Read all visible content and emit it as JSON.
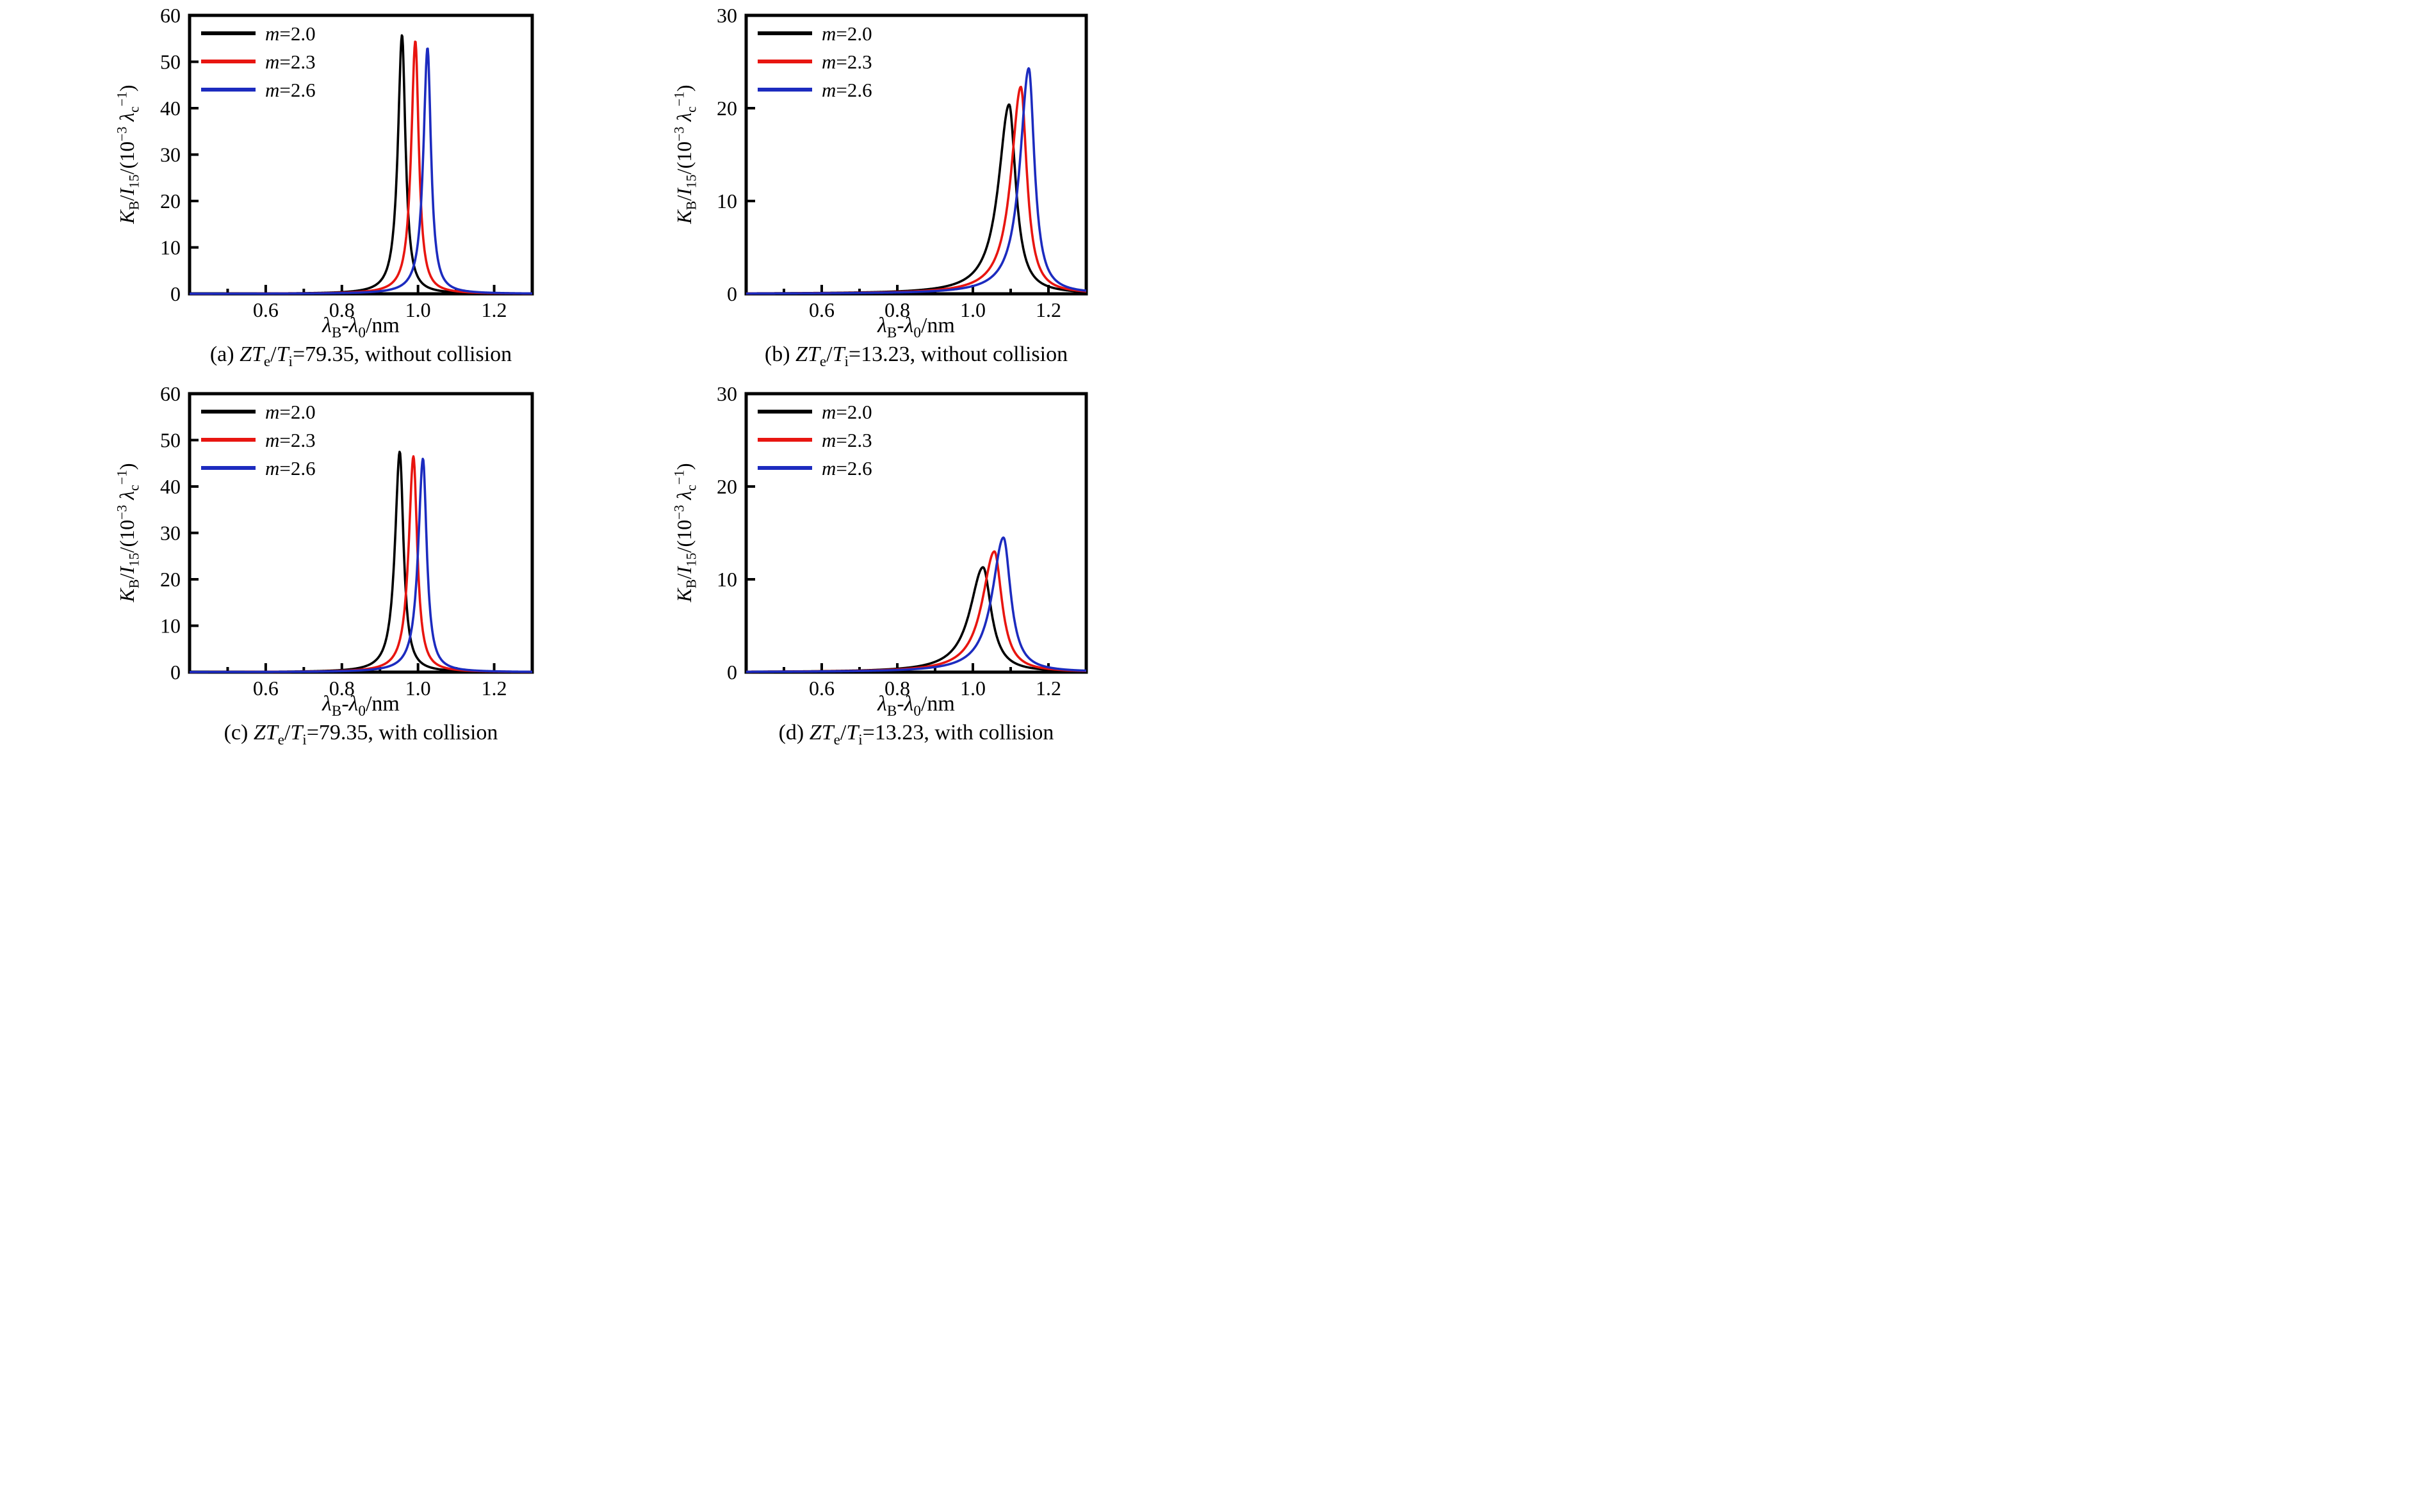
{
  "figure": {
    "background": "#ffffff",
    "axis_color": "#000000",
    "series_colors": {
      "black": "#000000",
      "red": "#e81510",
      "blue": "#1c2bbf"
    },
    "legend": [
      {
        "label": "*m*=2.0",
        "color_key": "black"
      },
      {
        "label": "*m*=2.3",
        "color_key": "red"
      },
      {
        "label": "*m*=2.6",
        "color_key": "blue"
      }
    ],
    "legend_position": "top-left-inside"
  },
  "chart_data": [
    {
      "id": "a",
      "type": "line",
      "caption": "(a) *ZT*_{e}/*T*_{i}=79.35, without collision",
      "xlabel": "*λ*_{B}-*λ*_{0}/nm",
      "ylabel": "*K*_{B}/*I*_{15}/(10^{−3} *λ*_{c}^{−1})",
      "xlim": [
        0.4,
        1.3
      ],
      "ylim": [
        0,
        60
      ],
      "x_tick_labels": [
        "0.6",
        "0.8",
        "1.0",
        "1.2"
      ],
      "x_ticks_minor": [
        0.5,
        0.7,
        0.9,
        1.1,
        1.3
      ],
      "y_ticks": [
        0,
        10,
        20,
        30,
        40,
        50,
        60
      ],
      "grid": false,
      "series": [
        {
          "name": "m=2.0",
          "color_key": "black",
          "profile": "lorentzian",
          "peak_center": 0.958,
          "peak_height": 55.8,
          "hwhm_left": 0.013,
          "hwhm_right": 0.011
        },
        {
          "name": "m=2.3",
          "color_key": "red",
          "profile": "lorentzian",
          "peak_center": 0.993,
          "peak_height": 54.5,
          "hwhm_left": 0.013,
          "hwhm_right": 0.011
        },
        {
          "name": "m=2.6",
          "color_key": "blue",
          "profile": "lorentzian",
          "peak_center": 1.025,
          "peak_height": 53.0,
          "hwhm_left": 0.013,
          "hwhm_right": 0.011
        }
      ]
    },
    {
      "id": "b",
      "type": "line",
      "caption": "(b) *ZT*_{e}/*T*_{i}=13.23, without collision",
      "xlabel": "*λ*_{B}-*λ*_{0}/nm",
      "ylabel": "*K*_{B}/*I*_{15}/(10^{−3} *λ*_{c}^{−1})",
      "xlim": [
        0.4,
        1.3
      ],
      "ylim": [
        0,
        30
      ],
      "x_tick_labels": [
        "0.6",
        "0.8",
        "1.0",
        "1.2"
      ],
      "x_ticks_minor": [
        0.5,
        0.7,
        0.9,
        1.1,
        1.3
      ],
      "y_ticks": [
        0,
        10,
        20,
        30
      ],
      "grid": false,
      "series": [
        {
          "name": "m=2.0",
          "color_key": "black",
          "profile": "lorentzian",
          "peak_center": 1.096,
          "peak_height": 20.4,
          "hwhm_left": 0.034,
          "hwhm_right": 0.021
        },
        {
          "name": "m=2.3",
          "color_key": "red",
          "profile": "lorentzian",
          "peak_center": 1.127,
          "peak_height": 22.3,
          "hwhm_left": 0.031,
          "hwhm_right": 0.019
        },
        {
          "name": "m=2.6",
          "color_key": "blue",
          "profile": "lorentzian",
          "peak_center": 1.148,
          "peak_height": 24.3,
          "hwhm_left": 0.028,
          "hwhm_right": 0.018
        }
      ]
    },
    {
      "id": "c",
      "type": "line",
      "caption": "(c) *ZT*_{e}/*T*_{i}=79.35, with collision",
      "xlabel": "*λ*_{B}-*λ*_{0}/nm",
      "ylabel": "*K*_{B}/*I*_{15}/(10^{−3} *λ*_{c}^{−1})",
      "xlim": [
        0.4,
        1.3
      ],
      "ylim": [
        0,
        60
      ],
      "x_tick_labels": [
        "0.6",
        "0.8",
        "1.0",
        "1.2"
      ],
      "x_ticks_minor": [
        0.5,
        0.7,
        0.9,
        1.1,
        1.3
      ],
      "y_ticks": [
        0,
        10,
        20,
        30,
        40,
        50,
        60
      ],
      "grid": false,
      "series": [
        {
          "name": "m=2.0",
          "color_key": "black",
          "profile": "lorentzian",
          "peak_center": 0.952,
          "peak_height": 47.5,
          "hwhm_left": 0.015,
          "hwhm_right": 0.012
        },
        {
          "name": "m=2.3",
          "color_key": "red",
          "profile": "lorentzian",
          "peak_center": 0.988,
          "peak_height": 46.5,
          "hwhm_left": 0.015,
          "hwhm_right": 0.012
        },
        {
          "name": "m=2.6",
          "color_key": "blue",
          "profile": "lorentzian",
          "peak_center": 1.013,
          "peak_height": 46.0,
          "hwhm_left": 0.015,
          "hwhm_right": 0.012
        }
      ]
    },
    {
      "id": "d",
      "type": "line",
      "caption": "(d) *ZT*_{e}/*T*_{i}=13.23, with collision",
      "xlabel": "*λ*_{B}-*λ*_{0}/nm",
      "ylabel": "*K*_{B}/*I*_{15}/(10^{−3} *λ*_{c}^{−1})",
      "xlim": [
        0.4,
        1.3
      ],
      "ylim": [
        0,
        30
      ],
      "x_tick_labels": [
        "0.6",
        "0.8",
        "1.0",
        "1.2"
      ],
      "x_ticks_minor": [
        0.5,
        0.7,
        0.9,
        1.1,
        1.3
      ],
      "y_ticks": [
        0,
        10,
        20,
        30
      ],
      "grid": false,
      "series": [
        {
          "name": "m=2.0",
          "color_key": "black",
          "profile": "lorentzian",
          "peak_center": 1.027,
          "peak_height": 11.3,
          "hwhm_left": 0.042,
          "hwhm_right": 0.026
        },
        {
          "name": "m=2.3",
          "color_key": "red",
          "profile": "lorentzian",
          "peak_center": 1.057,
          "peak_height": 13.0,
          "hwhm_left": 0.039,
          "hwhm_right": 0.024
        },
        {
          "name": "m=2.6",
          "color_key": "blue",
          "profile": "lorentzian",
          "peak_center": 1.081,
          "peak_height": 14.5,
          "hwhm_left": 0.036,
          "hwhm_right": 0.023
        }
      ]
    }
  ]
}
